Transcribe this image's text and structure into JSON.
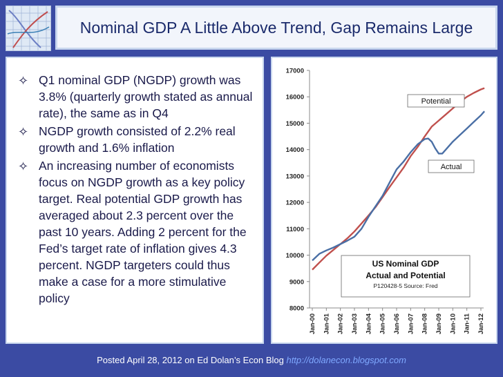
{
  "slide": {
    "title": "Nominal GDP A Little Above Trend, Gap Remains Large",
    "bullets": [
      {
        "text": "Q1 nominal GDP (NGDP) growth was 3.8% (quarterly growth stated as annual rate), the same as in Q4"
      },
      {
        "text": "NGDP growth consisted of 2.2% real growth and 1.6% inflation"
      },
      {
        "text": "An increasing number of economists focus on NGDP growth as a key policy target. Real potential GDP growth has averaged about 2.3 percent over the past 10 years. Adding 2 percent for the Fed’s target rate of inflation gives 4.3 percent. NGDP targeters could thus make a case for a more stimulative policy"
      }
    ],
    "bullet_icon": "diamond-outline-icon",
    "footer_text": "Posted April 28, 2012 on Ed Dolan’s Econ Blog ",
    "footer_link": "http://dolanecon.blogspot.com",
    "colors": {
      "background": "#3b4ba3",
      "actual": "#4a6fa5",
      "potential": "#c0504d",
      "title_text": "#1a2a6b"
    }
  },
  "chart_data": {
    "type": "line",
    "title": "US Nominal GDP",
    "subtitle": "Actual and Potential",
    "source": "P120428-5 Source: Fred",
    "ylim": [
      8000,
      17000
    ],
    "yticks": [
      8000,
      9000,
      10000,
      11000,
      12000,
      13000,
      14000,
      15000,
      16000,
      17000
    ],
    "xticks": [
      "Jan-00",
      "Jan-01",
      "Jan-02",
      "Jan-03",
      "Jan-04",
      "Jan-05",
      "Jan-06",
      "Jan-07",
      "Jan-08",
      "Jan-09",
      "Jan-10",
      "Jan-11",
      "Jan-12"
    ],
    "grid": false,
    "series": [
      {
        "name": "Potential",
        "color": "#c0504d",
        "x": [
          0,
          0.5,
          1,
          1.5,
          2,
          2.5,
          3,
          3.5,
          4,
          4.5,
          5,
          5.5,
          6,
          6.5,
          7,
          7.5,
          8,
          8.5,
          9,
          9.5,
          10,
          10.5,
          11,
          11.5,
          12,
          12.25
        ],
        "values": [
          9450,
          9720,
          9980,
          10200,
          10420,
          10640,
          10900,
          11200,
          11500,
          11820,
          12200,
          12580,
          12950,
          13320,
          13750,
          14100,
          14500,
          14870,
          15100,
          15330,
          15560,
          15800,
          16000,
          16150,
          16280,
          16330
        ]
      },
      {
        "name": "Actual",
        "color": "#4a6fa5",
        "x": [
          0,
          0.5,
          1,
          1.5,
          2,
          2.5,
          3,
          3.5,
          4,
          4.5,
          5,
          5.5,
          6,
          6.25,
          6.5,
          7,
          7.5,
          8,
          8.25,
          8.5,
          8.75,
          9,
          9.25,
          9.5,
          10,
          10.5,
          11,
          11.5,
          12,
          12.25
        ],
        "values": [
          9800,
          10050,
          10180,
          10290,
          10420,
          10550,
          10700,
          11000,
          11450,
          11850,
          12250,
          12750,
          13250,
          13400,
          13550,
          13900,
          14200,
          14400,
          14420,
          14300,
          14050,
          13850,
          13850,
          14000,
          14300,
          14550,
          14800,
          15050,
          15300,
          15450
        ]
      }
    ],
    "annotations": [
      "Potential",
      "Actual"
    ]
  }
}
